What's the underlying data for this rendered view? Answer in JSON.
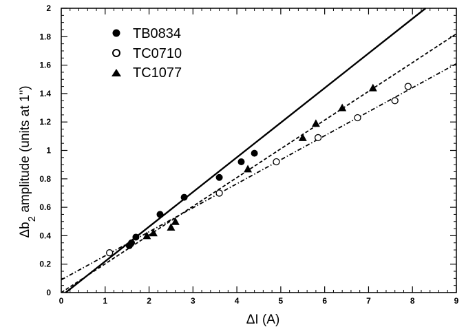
{
  "chart_data": {
    "type": "scatter",
    "xlabel": "ΔI (A)",
    "ylabel_prefix": "Δb",
    "ylabel_sub": "2",
    "ylabel_rest": " amplitude (units at 1\")",
    "xlim": [
      0,
      9
    ],
    "ylim": [
      0,
      2
    ],
    "x_ticks": [
      "0",
      "1",
      "2",
      "3",
      "4",
      "5",
      "6",
      "7",
      "8",
      "9"
    ],
    "y_ticks": [
      "0",
      "0.2",
      "0.4",
      "0.6",
      "0.8",
      "1",
      "1.2",
      "1.4",
      "1.6",
      "1.8",
      "2"
    ],
    "grid": false,
    "legend_position": "top-left",
    "series": [
      {
        "name": "TB0834",
        "marker": "filled-circle",
        "color": "#000000",
        "points": [
          [
            1.55,
            0.33
          ],
          [
            1.6,
            0.35
          ],
          [
            1.7,
            0.39
          ],
          [
            2.25,
            0.55
          ],
          [
            2.8,
            0.67
          ],
          [
            3.6,
            0.81
          ],
          [
            4.1,
            0.92
          ],
          [
            4.4,
            0.98
          ]
        ],
        "fit": {
          "style": "solid",
          "x": [
            0.1,
            8.3
          ],
          "y": [
            0.0,
            2.0
          ]
        }
      },
      {
        "name": "TC0710",
        "marker": "open-circle",
        "color": "#000000",
        "points": [
          [
            1.1,
            0.28
          ],
          [
            3.6,
            0.7
          ],
          [
            4.9,
            0.92
          ],
          [
            5.85,
            1.09
          ],
          [
            6.75,
            1.23
          ],
          [
            7.6,
            1.35
          ],
          [
            7.9,
            1.45
          ]
        ],
        "fit": {
          "style": "dash-dot",
          "x": [
            0.0,
            9.0
          ],
          "y": [
            0.09,
            1.61
          ]
        }
      },
      {
        "name": "TC1077",
        "marker": "filled-triangle",
        "color": "#000000",
        "points": [
          [
            1.95,
            0.4
          ],
          [
            2.1,
            0.42
          ],
          [
            2.5,
            0.46
          ],
          [
            2.6,
            0.5
          ],
          [
            4.25,
            0.87
          ],
          [
            5.5,
            1.09
          ],
          [
            5.8,
            1.19
          ],
          [
            6.4,
            1.3
          ],
          [
            7.1,
            1.44
          ]
        ],
        "fit": {
          "style": "dashed",
          "x": [
            0.0,
            9.0
          ],
          "y": [
            0.0,
            1.82
          ]
        }
      }
    ]
  }
}
